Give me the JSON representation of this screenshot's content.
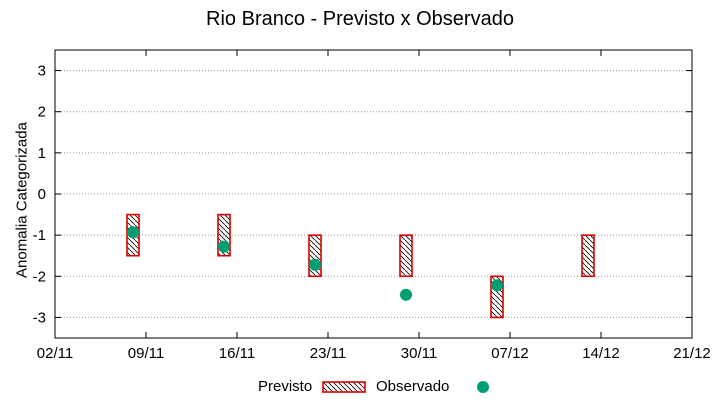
{
  "chart_data": {
    "type": "range-scatter",
    "title": "Rio Branco - Previsto x Observado",
    "xlabel": "",
    "ylabel": "Anomalia Categorizada",
    "x_ticks": [
      "02/11",
      "09/11",
      "16/11",
      "23/11",
      "30/11",
      "07/12",
      "14/12",
      "21/12"
    ],
    "y_ticks": [
      3,
      2,
      1,
      0,
      -1,
      -2,
      -3
    ],
    "xlim": [
      "2024-11-02",
      "2024-12-21"
    ],
    "ylim": [
      -3.5,
      3.5
    ],
    "grid": true,
    "legend_position": "bottom",
    "series": [
      {
        "name": "Previsto",
        "style": "hatched-box",
        "color": "#dd0000",
        "points": [
          {
            "x": "2024-11-08",
            "low": -1.5,
            "high": -0.5
          },
          {
            "x": "2024-11-15",
            "low": -1.5,
            "high": -0.5
          },
          {
            "x": "2024-11-22",
            "low": -2.0,
            "high": -1.0
          },
          {
            "x": "2024-11-29",
            "low": -2.0,
            "high": -1.0
          },
          {
            "x": "2024-12-06",
            "low": -3.0,
            "high": -2.0
          },
          {
            "x": "2024-12-13",
            "low": -2.0,
            "high": -1.0
          }
        ]
      },
      {
        "name": "Observado",
        "style": "dot",
        "color": "#009e73",
        "points": [
          {
            "x": "2024-11-08",
            "y": -0.93
          },
          {
            "x": "2024-11-15",
            "y": -1.28
          },
          {
            "x": "2024-11-22",
            "y": -1.72
          },
          {
            "x": "2024-11-29",
            "y": -2.45
          },
          {
            "x": "2024-12-06",
            "y": -2.22
          }
        ]
      }
    ]
  }
}
